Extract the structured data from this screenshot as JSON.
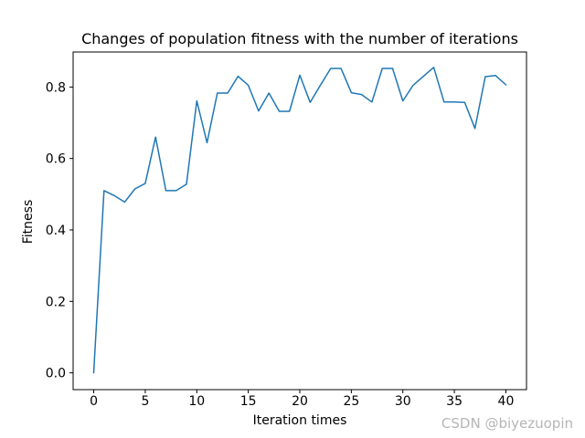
{
  "chart_data": {
    "type": "line",
    "title": "Changes of population fitness with the number of iterations",
    "xlabel": "Iteration times",
    "ylabel": "Fitness",
    "x": [
      0,
      1,
      2,
      3,
      4,
      5,
      6,
      7,
      8,
      9,
      10,
      11,
      12,
      13,
      14,
      15,
      16,
      17,
      18,
      19,
      20,
      21,
      22,
      23,
      24,
      25,
      26,
      27,
      28,
      29,
      30,
      31,
      32,
      33,
      34,
      35,
      36,
      37,
      38,
      39,
      40
    ],
    "values": [
      0.0,
      0.51,
      0.496,
      0.478,
      0.515,
      0.53,
      0.66,
      0.51,
      0.51,
      0.528,
      0.761,
      0.644,
      0.783,
      0.783,
      0.83,
      0.805,
      0.733,
      0.783,
      0.732,
      0.732,
      0.833,
      0.757,
      0.805,
      0.852,
      0.852,
      0.784,
      0.779,
      0.758,
      0.852,
      0.852,
      0.761,
      0.805,
      0.83,
      0.855,
      0.758,
      0.758,
      0.757,
      0.684,
      0.829,
      0.832,
      0.806
    ],
    "xticks": [
      0,
      5,
      10,
      15,
      20,
      25,
      30,
      35,
      40
    ],
    "yticks": [
      0.0,
      0.2,
      0.4,
      0.6,
      0.8
    ],
    "xlim": [
      -2,
      42
    ],
    "ylim": [
      -0.047,
      0.898
    ],
    "grid": false,
    "legend": "none",
    "line_color": "#1f77b4",
    "axis_color": "#000000",
    "background": "#ffffff"
  },
  "watermark": {
    "text": "CSDN @biyezuopin",
    "color": "#b5b5b5"
  }
}
